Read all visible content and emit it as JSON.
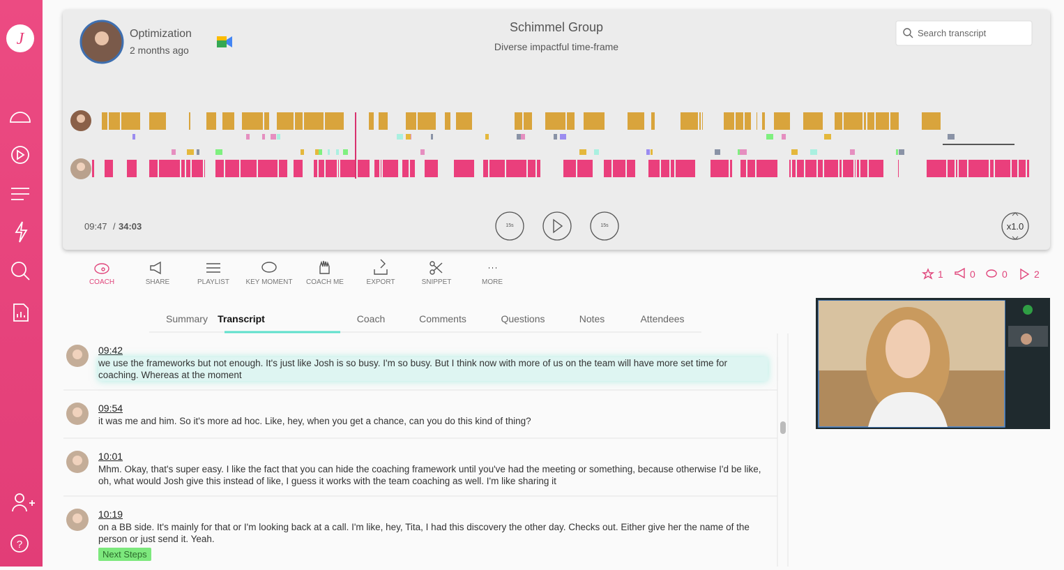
{
  "sidebar": {
    "logo": "J"
  },
  "meeting": {
    "title": "Optimization",
    "time_ago": "2 months ago",
    "company": "Schimmel Group",
    "subtitle": "Diverse impactful time-frame"
  },
  "search": {
    "placeholder": "Search transcript"
  },
  "player": {
    "current": "09:47",
    "separator": "/",
    "total": "34:03",
    "skip_back": "15s",
    "skip_forward": "15s",
    "speed": "x1.0"
  },
  "toolbar": [
    "COACH",
    "SHARE",
    "PLAYLIST",
    "KEY MOMENT",
    "COACH ME",
    "EXPORT",
    "SNIPPET",
    "MORE"
  ],
  "counters": {
    "stars": 1,
    "shares": 0,
    "comments": 0,
    "plays": 2
  },
  "tabs": [
    "Summary",
    "Transcript",
    "Coach",
    "Comments",
    "Questions",
    "Notes",
    "Attendees"
  ],
  "transcript": [
    {
      "time": "09:42",
      "text": "we use the frameworks but not enough. It's just like Josh is so busy. I'm so busy. But I think now with more of us on the team will have more set time for coaching. Whereas at the moment"
    },
    {
      "time": "09:54",
      "text": "it was me and him. So it's more ad hoc. Like, hey, when you get a chance, can you do this kind of thing?"
    },
    {
      "time": "10:01",
      "text": "Mhm. Okay, that's super easy. I like the fact that you can hide the coaching framework until you've had the meeting or something, because otherwise I'd be like, oh, what would Josh give this instead of like, I guess it works with the team coaching as well. I'm like sharing it"
    },
    {
      "time": "10:19",
      "text": "on a BB side. It's mainly for that or I'm looking back at a call. I'm like, hey, Tita, I had this discovery the other day. Checks out. Either give her the name of the person or just send it. Yeah.",
      "tag": "Next Steps"
    }
  ]
}
